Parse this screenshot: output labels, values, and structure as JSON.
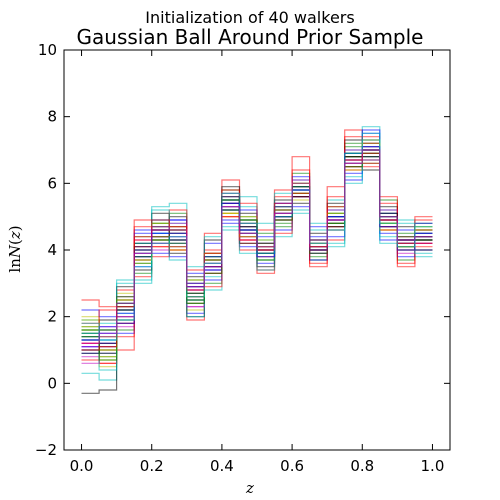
{
  "suptitle": "Initialization of 40 walkers",
  "chart_data": {
    "type": "line",
    "title": "Gaussian Ball Around Prior Sample",
    "xlabel": "z",
    "ylabel": "lnN(z)",
    "xlim": [
      -0.05,
      1.05
    ],
    "ylim": [
      -2,
      10
    ],
    "xticks": [
      "0.0",
      "0.2",
      "0.4",
      "0.6",
      "0.8",
      "1.0"
    ],
    "yticks": [
      "−2",
      "0",
      "2",
      "4",
      "6",
      "8",
      "10"
    ],
    "grid": false,
    "step_style": "step-mid",
    "x": [
      0.025,
      0.075,
      0.125,
      0.175,
      0.225,
      0.275,
      0.325,
      0.375,
      0.425,
      0.475,
      0.525,
      0.575,
      0.625,
      0.675,
      0.725,
      0.775,
      0.825,
      0.875,
      0.925,
      0.975
    ],
    "center_values": [
      1.3,
      1.1,
      2.1,
      3.9,
      4.5,
      4.4,
      2.7,
      3.6,
      5.3,
      4.6,
      4.0,
      5.1,
      5.8,
      4.1,
      4.9,
      6.7,
      7.0,
      4.9,
      4.2,
      4.4
    ],
    "n_walkers": 40,
    "series_colors": [
      "#0000ff",
      "#008000",
      "#ff0000",
      "#00bfbf",
      "#bf00bf",
      "#bfbf00",
      "#000000"
    ],
    "series": [
      {
        "values": [
          1.1,
          0.9,
          2.4,
          3.5,
          4.9,
          3.8,
          2.1,
          4.2,
          4.9,
          4.1,
          3.6,
          5.4,
          5.3,
          4.7,
          4.6,
          6.1,
          7.5,
          4.3,
          4.6,
          4.0
        ]
      },
      {
        "values": [
          1.6,
          1.4,
          1.6,
          4.4,
          4.2,
          5.1,
          3.1,
          3.0,
          5.8,
          5.0,
          4.5,
          4.7,
          6.3,
          3.7,
          5.3,
          7.2,
          6.6,
          5.5,
          3.7,
          4.8
        ]
      },
      {
        "values": [
          0.7,
          0.6,
          2.8,
          3.2,
          4.6,
          4.0,
          2.4,
          3.9,
          5.1,
          4.3,
          3.3,
          5.6,
          5.6,
          4.3,
          4.3,
          6.4,
          7.3,
          4.6,
          4.4,
          4.2
        ]
      },
      {
        "values": [
          1.9,
          1.8,
          1.9,
          4.2,
          4.9,
          4.8,
          3.0,
          3.4,
          5.6,
          5.3,
          4.3,
          4.9,
          6.1,
          3.9,
          5.5,
          7.0,
          6.8,
          5.2,
          4.0,
          4.6
        ]
      },
      {
        "values": [
          1.3,
          1.2,
          2.2,
          3.8,
          4.0,
          4.5,
          2.7,
          3.6,
          5.4,
          4.7,
          3.9,
          5.1,
          5.7,
          4.1,
          4.8,
          6.8,
          7.1,
          4.8,
          4.2,
          4.4
        ]
      },
      {
        "values": [
          1.0,
          0.5,
          2.6,
          4.0,
          4.3,
          4.2,
          2.2,
          3.8,
          5.0,
          4.4,
          3.8,
          5.2,
          5.9,
          4.0,
          5.0,
          6.5,
          6.9,
          5.0,
          4.1,
          4.5
        ]
      },
      {
        "values": [
          1.5,
          1.6,
          1.8,
          3.7,
          4.7,
          4.6,
          3.2,
          3.3,
          5.5,
          4.9,
          4.1,
          5.0,
          5.6,
          4.2,
          4.7,
          6.9,
          7.2,
          4.7,
          4.3,
          4.3
        ]
      },
      {
        "values": [
          0.9,
          1.3,
          2.3,
          4.6,
          4.4,
          4.9,
          2.5,
          3.7,
          5.2,
          4.5,
          4.2,
          5.3,
          5.8,
          4.4,
          4.9,
          6.6,
          7.0,
          4.9,
          4.0,
          4.4
        ]
      },
      {
        "values": [
          1.7,
          0.8,
          2.0,
          3.3,
          4.8,
          4.1,
          2.9,
          3.5,
          5.7,
          4.8,
          3.7,
          4.8,
          6.0,
          3.8,
          5.1,
          7.1,
          6.7,
          5.1,
          4.5,
          4.7
        ]
      },
      {
        "values": [
          1.2,
          1.0,
          2.5,
          4.1,
          4.1,
          4.7,
          2.6,
          4.0,
          5.3,
          4.2,
          4.0,
          5.0,
          5.9,
          4.1,
          4.8,
          6.7,
          7.4,
          4.6,
          4.3,
          4.1
        ]
      },
      {
        "values": [
          1.4,
          1.5,
          2.1,
          3.9,
          4.5,
          4.3,
          2.8,
          3.2,
          5.4,
          4.6,
          3.9,
          5.2,
          5.7,
          4.0,
          5.2,
          6.8,
          6.9,
          4.8,
          4.2,
          4.5
        ]
      },
      {
        "values": [
          0.8,
          1.1,
          1.7,
          4.3,
          4.2,
          4.4,
          2.3,
          3.9,
          5.6,
          4.6,
          4.1,
          5.1,
          5.8,
          4.2,
          4.6,
          6.6,
          7.0,
          5.0,
          3.9,
          4.3
        ]
      },
      {
        "values": [
          2.0,
          0.7,
          2.7,
          3.6,
          4.6,
          4.5,
          2.7,
          3.6,
          5.1,
          4.7,
          3.8,
          5.3,
          5.7,
          4.3,
          4.9,
          6.9,
          7.1,
          4.9,
          4.4,
          4.4
        ]
      },
      {
        "values": [
          1.3,
          1.9,
          2.2,
          3.8,
          4.4,
          5.0,
          2.9,
          3.7,
          5.2,
          5.1,
          4.0,
          4.9,
          5.9,
          3.9,
          5.0,
          6.5,
          6.8,
          4.7,
          4.1,
          4.6
        ]
      },
      {
        "values": [
          1.1,
          1.2,
          1.9,
          4.2,
          4.5,
          4.2,
          2.6,
          3.5,
          5.5,
          4.4,
          4.2,
          5.4,
          5.6,
          4.0,
          4.8,
          6.7,
          7.2,
          5.1,
          4.2,
          4.2
        ]
      },
      {
        "values": [
          1.5,
          1.0,
          2.4,
          3.9,
          4.7,
          4.6,
          2.5,
          3.8,
          5.3,
          4.8,
          3.9,
          5.0,
          6.0,
          4.1,
          5.1,
          6.8,
          7.0,
          4.8,
          4.3,
          4.5
        ]
      },
      {
        "values": [
          2.5,
          2.3,
          1.0,
          4.9,
          4.1,
          4.0,
          1.9,
          4.5,
          6.1,
          4.0,
          3.4,
          5.8,
          6.8,
          3.5,
          5.9,
          7.6,
          6.5,
          5.6,
          3.5,
          4.9
        ]
      },
      {
        "values": [
          0.3,
          0.1,
          3.1,
          3.0,
          5.3,
          5.4,
          3.5,
          2.8,
          4.6,
          5.6,
          4.8,
          4.4,
          5.1,
          4.8,
          4.1,
          6.2,
          7.7,
          4.2,
          4.9,
          3.8
        ]
      },
      {
        "values": [
          1.2,
          0.9,
          2.0,
          3.7,
          4.4,
          4.5,
          2.8,
          3.4,
          5.4,
          4.5,
          4.1,
          5.2,
          5.8,
          4.1,
          4.9,
          6.6,
          6.9,
          4.9,
          4.2,
          4.4
        ]
      },
      {
        "values": [
          1.6,
          1.4,
          2.3,
          4.0,
          4.6,
          4.3,
          2.7,
          3.7,
          5.2,
          4.7,
          3.9,
          5.1,
          5.7,
          4.2,
          4.8,
          6.8,
          7.1,
          4.8,
          4.1,
          4.5
        ]
      },
      {
        "values": [
          -0.3,
          -0.2,
          2.9,
          3.4,
          5.1,
          3.9,
          2.0,
          4.3,
          5.9,
          4.2,
          3.5,
          5.5,
          5.4,
          4.5,
          5.4,
          7.3,
          6.4,
          5.3,
          4.7,
          4.0
        ]
      },
      {
        "values": [
          2.2,
          2.0,
          1.5,
          4.5,
          3.9,
          4.9,
          3.3,
          3.1,
          4.8,
          5.2,
          4.4,
          4.6,
          6.2,
          3.7,
          4.4,
          6.3,
          7.6,
          4.5,
          3.8,
          4.8
        ]
      },
      {
        "values": [
          1.0,
          1.6,
          2.5,
          3.6,
          4.8,
          4.7,
          2.4,
          3.9,
          5.5,
          4.9,
          3.7,
          5.3,
          5.9,
          4.0,
          5.0,
          6.9,
          6.9,
          5.0,
          4.3,
          4.3
        ]
      },
      {
        "values": [
          1.8,
          0.6,
          1.8,
          4.3,
          4.3,
          4.1,
          3.0,
          3.3,
          5.0,
          4.4,
          4.2,
          4.9,
          5.6,
          4.3,
          4.7,
          6.5,
          7.2,
          4.7,
          4.0,
          4.6
        ]
      },
      {
        "values": [
          1.3,
          1.3,
          2.2,
          3.9,
          4.5,
          4.4,
          2.7,
          3.6,
          5.3,
          4.6,
          4.0,
          5.1,
          5.8,
          4.1,
          4.9,
          6.7,
          7.0,
          4.9,
          4.2,
          4.4
        ]
      },
      {
        "values": [
          0.6,
          1.7,
          2.6,
          4.1,
          4.2,
          4.8,
          2.3,
          3.5,
          5.7,
          4.3,
          3.8,
          5.0,
          6.1,
          3.9,
          5.2,
          7.0,
          6.7,
          5.2,
          4.4,
          4.2
        ]
      },
      {
        "values": [
          1.9,
          0.8,
          1.9,
          3.7,
          4.8,
          4.0,
          3.1,
          3.9,
          5.1,
          5.0,
          4.3,
          5.3,
          5.5,
          4.3,
          4.6,
          6.4,
          7.3,
          4.6,
          4.0,
          4.7
        ]
      },
      {
        "values": [
          1.4,
          1.1,
          2.3,
          4.0,
          4.4,
          4.6,
          2.6,
          3.7,
          5.4,
          4.6,
          4.0,
          5.2,
          5.8,
          4.0,
          4.9,
          6.8,
          7.0,
          4.9,
          4.1,
          4.4
        ]
      },
      {
        "values": [
          1.0,
          1.5,
          2.1,
          3.8,
          4.6,
          4.3,
          2.9,
          3.4,
          5.2,
          4.7,
          3.9,
          5.0,
          5.9,
          4.2,
          5.0,
          6.6,
          7.1,
          5.0,
          4.3,
          4.5
        ]
      },
      {
        "values": [
          1.6,
          0.9,
          2.4,
          4.2,
          4.3,
          4.5,
          2.5,
          3.8,
          5.5,
          4.5,
          4.1,
          5.1,
          5.7,
          4.1,
          4.8,
          6.9,
          6.9,
          4.8,
          4.2,
          4.3
        ]
      },
      {
        "values": [
          1.2,
          2.2,
          1.4,
          4.7,
          3.8,
          5.2,
          3.4,
          2.9,
          5.8,
          5.4,
          4.6,
          4.5,
          6.4,
          3.6,
          5.6,
          7.4,
          6.6,
          5.4,
          3.6,
          5.0
        ]
      },
      {
        "values": [
          1.5,
          0.4,
          3.0,
          3.1,
          5.2,
          3.7,
          2.0,
          4.4,
          4.7,
          3.9,
          3.4,
          5.7,
          5.2,
          4.6,
          4.2,
          6.0,
          7.5,
          4.4,
          4.8,
          3.9
        ]
      },
      {
        "values": [
          1.1,
          1.4,
          2.0,
          3.9,
          4.7,
          4.4,
          2.8,
          3.6,
          5.3,
          4.8,
          4.0,
          5.1,
          5.8,
          4.1,
          4.9,
          6.7,
          7.0,
          4.9,
          4.2,
          4.4
        ]
      },
      {
        "values": [
          1.7,
          1.0,
          2.5,
          3.7,
          4.4,
          4.6,
          2.6,
          3.7,
          5.1,
          4.4,
          4.1,
          5.2,
          6.0,
          4.2,
          5.1,
          6.6,
          7.2,
          4.8,
          4.1,
          4.6
        ]
      },
      {
        "values": [
          0.9,
          1.2,
          2.2,
          4.1,
          4.6,
          4.3,
          2.7,
          3.5,
          5.6,
          4.7,
          3.9,
          5.0,
          5.6,
          4.0,
          4.7,
          6.8,
          6.8,
          5.1,
          4.3,
          4.3
        ]
      },
      {
        "values": [
          1.3,
          1.7,
          1.8,
          4.0,
          4.5,
          4.5,
          3.0,
          3.8,
          5.4,
          4.6,
          3.8,
          5.3,
          5.8,
          4.3,
          5.0,
          6.9,
          7.1,
          4.7,
          4.0,
          4.5
        ]
      },
      {
        "values": [
          1.4,
          0.7,
          2.6,
          3.8,
          4.3,
          4.2,
          2.4,
          3.3,
          5.2,
          4.9,
          4.2,
          4.9,
          5.9,
          3.9,
          4.8,
          6.5,
          7.0,
          5.0,
          4.4,
          4.4
        ]
      },
      {
        "values": [
          1.0,
          1.1,
          2.3,
          4.4,
          4.9,
          4.7,
          2.8,
          3.9,
          5.0,
          4.3,
          4.0,
          5.4,
          5.7,
          4.1,
          5.3,
          6.7,
          6.9,
          4.9,
          4.2,
          4.2
        ]
      },
      {
        "values": [
          1.8,
          1.3,
          1.9,
          3.5,
          4.2,
          4.4,
          2.6,
          3.6,
          5.7,
          4.8,
          3.9,
          5.0,
          5.8,
          4.2,
          4.6,
          6.9,
          7.3,
          4.8,
          4.1,
          4.7
        ]
      },
      {
        "values": [
          1.2,
          1.5,
          2.4,
          3.9,
          4.6,
          4.6,
          2.9,
          3.5,
          5.3,
          4.5,
          4.1,
          5.1,
          6.0,
          4.0,
          4.9,
          6.6,
          7.0,
          5.0,
          4.3,
          4.4
        ]
      }
    ]
  }
}
